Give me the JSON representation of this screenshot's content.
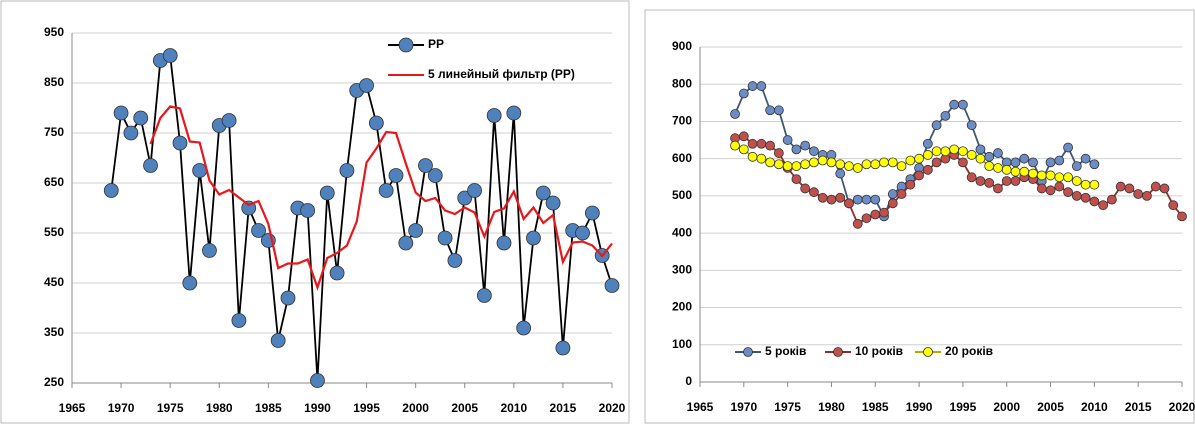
{
  "chart_data": [
    {
      "type": "line",
      "x": [
        1969,
        1970,
        1971,
        1972,
        1973,
        1974,
        1975,
        1976,
        1977,
        1978,
        1979,
        1980,
        1981,
        1982,
        1983,
        1984,
        1985,
        1986,
        1987,
        1988,
        1989,
        1990,
        1991,
        1992,
        1993,
        1994,
        1995,
        1996,
        1997,
        1998,
        1999,
        2000,
        2001,
        2002,
        2003,
        2004,
        2005,
        2006,
        2007,
        2008,
        2009,
        2010,
        2011,
        2012,
        2013,
        2014,
        2015,
        2016,
        2017,
        2018,
        2019,
        2020
      ],
      "series": [
        {
          "name": "PP",
          "color": "#000000",
          "marker_color": "#4f81bd",
          "marker": true,
          "values": [
            635,
            790,
            750,
            780,
            685,
            895,
            905,
            730,
            450,
            675,
            515,
            765,
            775,
            375,
            600,
            555,
            535,
            335,
            420,
            600,
            595,
            255,
            630,
            470,
            675,
            835,
            845,
            770,
            635,
            665,
            530,
            555,
            685,
            665,
            540,
            495,
            620,
            635,
            425,
            785,
            530,
            790,
            360,
            540,
            630,
            610,
            320,
            555,
            550,
            590,
            505,
            445
          ]
        },
        {
          "name": "5 линейный фильтр (PP)",
          "color": "#e8171a",
          "marker": false,
          "values": [
            null,
            null,
            null,
            null,
            728,
            780,
            803,
            799,
            733,
            731,
            655,
            627,
            636,
            621,
            606,
            614,
            568,
            480,
            489,
            489,
            497,
            441,
            500,
            510,
            525,
            573,
            691,
            719,
            752,
            750,
            689,
            631,
            614,
            620,
            595,
            588,
            601,
            591,
            543,
            592,
            599,
            633,
            578,
            601,
            570,
            586,
            492,
            531,
            533,
            525,
            504,
            529
          ]
        }
      ],
      "xlim": [
        1965,
        2020
      ],
      "xticks": [
        1965,
        1970,
        1975,
        1980,
        1985,
        1990,
        1995,
        2000,
        2005,
        2010,
        2015,
        2020
      ],
      "ylim": [
        250,
        950
      ],
      "yticks": [
        250,
        350,
        450,
        550,
        650,
        750,
        850,
        950
      ],
      "grid": true,
      "legend": "top"
    },
    {
      "type": "line",
      "x": [
        1969,
        1970,
        1971,
        1972,
        1973,
        1974,
        1975,
        1976,
        1977,
        1978,
        1979,
        1980,
        1981,
        1982,
        1983,
        1984,
        1985,
        1986,
        1987,
        1988,
        1989,
        1990,
        1991,
        1992,
        1993,
        1994,
        1995,
        1996,
        1997,
        1998,
        1999,
        2000,
        2001,
        2002,
        2003,
        2004,
        2005,
        2006,
        2007,
        2008,
        2009,
        2010,
        2011,
        2012,
        2013,
        2014,
        2015,
        2016,
        2017,
        2018,
        2019,
        2020
      ],
      "series": [
        {
          "name": "5 років",
          "color": "#3f5872",
          "marker_color": "#6b8cc4",
          "marker": true,
          "values": [
            720,
            775,
            795,
            795,
            730,
            730,
            650,
            625,
            635,
            620,
            610,
            610,
            560,
            480,
            490,
            490,
            490,
            445,
            505,
            525,
            545,
            575,
            640,
            690,
            715,
            745,
            745,
            690,
            625,
            605,
            615,
            590,
            590,
            600,
            590,
            540,
            590,
            595,
            630,
            580,
            600,
            585,
            null,
            null,
            null,
            null,
            null,
            null,
            null,
            null,
            null,
            null
          ]
        },
        {
          "name": "10 років",
          "color": "#8b2e2c",
          "marker_color": "#c0504d",
          "marker": true,
          "values": [
            655,
            660,
            640,
            640,
            635,
            615,
            575,
            545,
            520,
            510,
            495,
            490,
            495,
            480,
            425,
            440,
            450,
            455,
            480,
            505,
            530,
            555,
            570,
            590,
            600,
            610,
            590,
            550,
            540,
            535,
            520,
            540,
            540,
            550,
            545,
            520,
            515,
            525,
            510,
            500,
            495,
            485,
            475,
            490,
            525,
            520,
            505,
            500,
            525,
            520,
            475,
            445
          ]
        },
        {
          "name": "20 років",
          "color": "#b8a800",
          "marker_color": "#ffff00",
          "marker": true,
          "values": [
            635,
            625,
            605,
            600,
            590,
            585,
            580,
            580,
            585,
            590,
            595,
            590,
            585,
            580,
            575,
            585,
            585,
            590,
            590,
            580,
            595,
            600,
            610,
            620,
            620,
            625,
            620,
            610,
            600,
            580,
            575,
            570,
            565,
            565,
            560,
            555,
            555,
            550,
            550,
            540,
            530,
            530,
            null,
            null,
            null,
            null,
            null,
            null,
            null,
            null,
            null,
            null
          ]
        }
      ],
      "xlim": [
        1965,
        2020
      ],
      "xticks": [
        1965,
        1970,
        1975,
        1980,
        1985,
        1990,
        1995,
        2000,
        2005,
        2010,
        2015,
        2020
      ],
      "ylim": [
        0,
        900
      ],
      "yticks": [
        0,
        100,
        200,
        300,
        400,
        500,
        600,
        700,
        800,
        900
      ],
      "grid": true,
      "legend": "bottom-left"
    }
  ]
}
